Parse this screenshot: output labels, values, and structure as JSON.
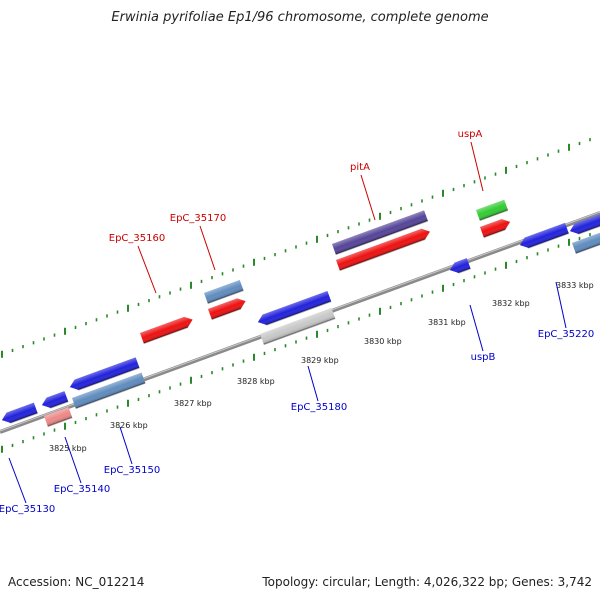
{
  "title": "Erwinia pyrifoliae Ep1/96 chromosome, complete genome",
  "footer": {
    "accession": "Accession: NC_012214",
    "summary": "Topology: circular; Length: 4,026,322 bp; Genes: 3,742"
  },
  "colors": {
    "backbone": "#8a8a8a",
    "tick": "#2a8a2a",
    "scale_text": "#222222",
    "label_forward": "#cc0000",
    "label_reverse": "#0000cc"
  },
  "scale_labels": [
    "3825 kbp",
    "3826 kbp",
    "3827 kbp",
    "3828 kbp",
    "3829 kbp",
    "3830 kbp",
    "3831 kbp",
    "3832 kbp",
    "3833 kbp"
  ],
  "gene_labels": [
    {
      "text": "EpC_35170",
      "strand": "forward"
    },
    {
      "text": "EpC_35160",
      "strand": "forward"
    },
    {
      "text": "pitA",
      "strand": "forward"
    },
    {
      "text": "uspA",
      "strand": "forward"
    },
    {
      "text": "EpC_35220",
      "strand": "reverse"
    },
    {
      "text": "uspB",
      "strand": "reverse"
    },
    {
      "text": "EpC_35180",
      "strand": "reverse"
    },
    {
      "text": "EpC_35150",
      "strand": "reverse"
    },
    {
      "text": "EpC_35140",
      "strand": "reverse"
    },
    {
      "text": "EpC_35130",
      "strand": "reverse"
    }
  ],
  "features": [
    {
      "name": "feature-3825-rev-a",
      "color": "#2222dd"
    },
    {
      "name": "feature-3825-rev-b",
      "color": "#2222dd"
    },
    {
      "name": "feature-3825-rev-pink",
      "color": "#ee8888"
    },
    {
      "name": "feature-3826-rev-blue",
      "color": "#2222dd"
    },
    {
      "name": "feature-3826-rev-steel",
      "color": "#5f8cbf"
    },
    {
      "name": "feature-3827-fwd-red",
      "color": "#ee1111"
    },
    {
      "name": "feature-3828-fwd-steel",
      "color": "#5f8cbf"
    },
    {
      "name": "feature-3828-fwd-red",
      "color": "#ee1111"
    },
    {
      "name": "feature-3829-rev-blue",
      "color": "#2222dd"
    },
    {
      "name": "feature-3829-rev-gray",
      "color": "#c8c8c8"
    },
    {
      "name": "feature-3830-fwd-purple",
      "color": "#554499"
    },
    {
      "name": "feature-3830-fwd-red",
      "color": "#ee1111"
    },
    {
      "name": "feature-3831-rev-blue",
      "color": "#2222dd"
    },
    {
      "name": "feature-3832-fwd-green",
      "color": "#33cc33"
    },
    {
      "name": "feature-3832-fwd-red",
      "color": "#ee1111"
    },
    {
      "name": "feature-3833-rev-blue-a",
      "color": "#2222dd"
    },
    {
      "name": "feature-3833-rev-blue-b",
      "color": "#2222dd"
    },
    {
      "name": "feature-3833-rev-steel",
      "color": "#5f8cbf"
    }
  ]
}
